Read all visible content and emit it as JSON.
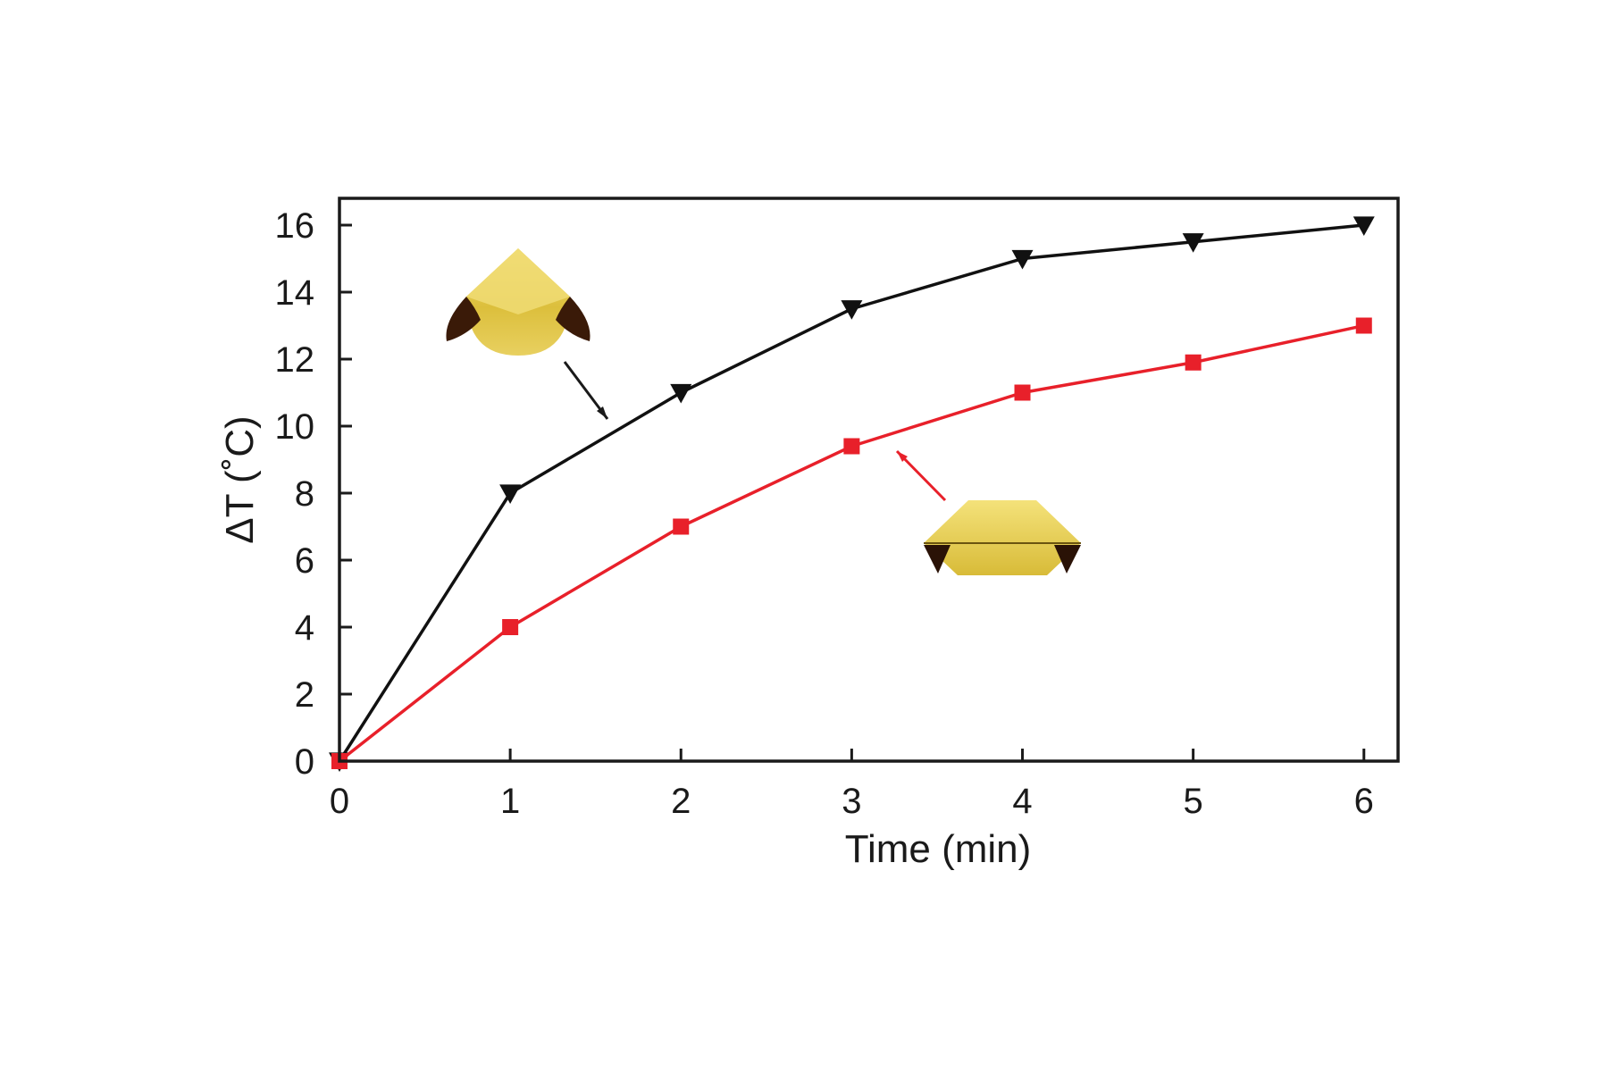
{
  "chart_data": {
    "type": "line",
    "xlabel": "Time (min)",
    "ylabel": "ΔT (˚C)",
    "xlim": [
      0,
      6.2
    ],
    "ylim": [
      0,
      16.8
    ],
    "x_ticks": [
      "0",
      "1",
      "2",
      "3",
      "4",
      "5",
      "6"
    ],
    "y_ticks": [
      "0",
      "2",
      "4",
      "6",
      "8",
      "10",
      "12",
      "14",
      "16"
    ],
    "grid": false,
    "x": [
      0,
      1,
      2,
      3,
      4,
      5,
      6
    ],
    "series": [
      {
        "color": "#111111",
        "marker": "triangle-down",
        "values": [
          0,
          8.0,
          11.0,
          13.5,
          15.0,
          15.5,
          16.0
        ]
      },
      {
        "color": "#e8202a",
        "marker": "square",
        "values": [
          0,
          4.0,
          7.0,
          9.4,
          11.0,
          11.9,
          13.0
        ]
      }
    ],
    "annotations": [
      {
        "icon": "bipyramid-particle-icon",
        "points_to_series": 0
      },
      {
        "icon": "truncated-particle-icon",
        "points_to_series": 1
      }
    ]
  }
}
